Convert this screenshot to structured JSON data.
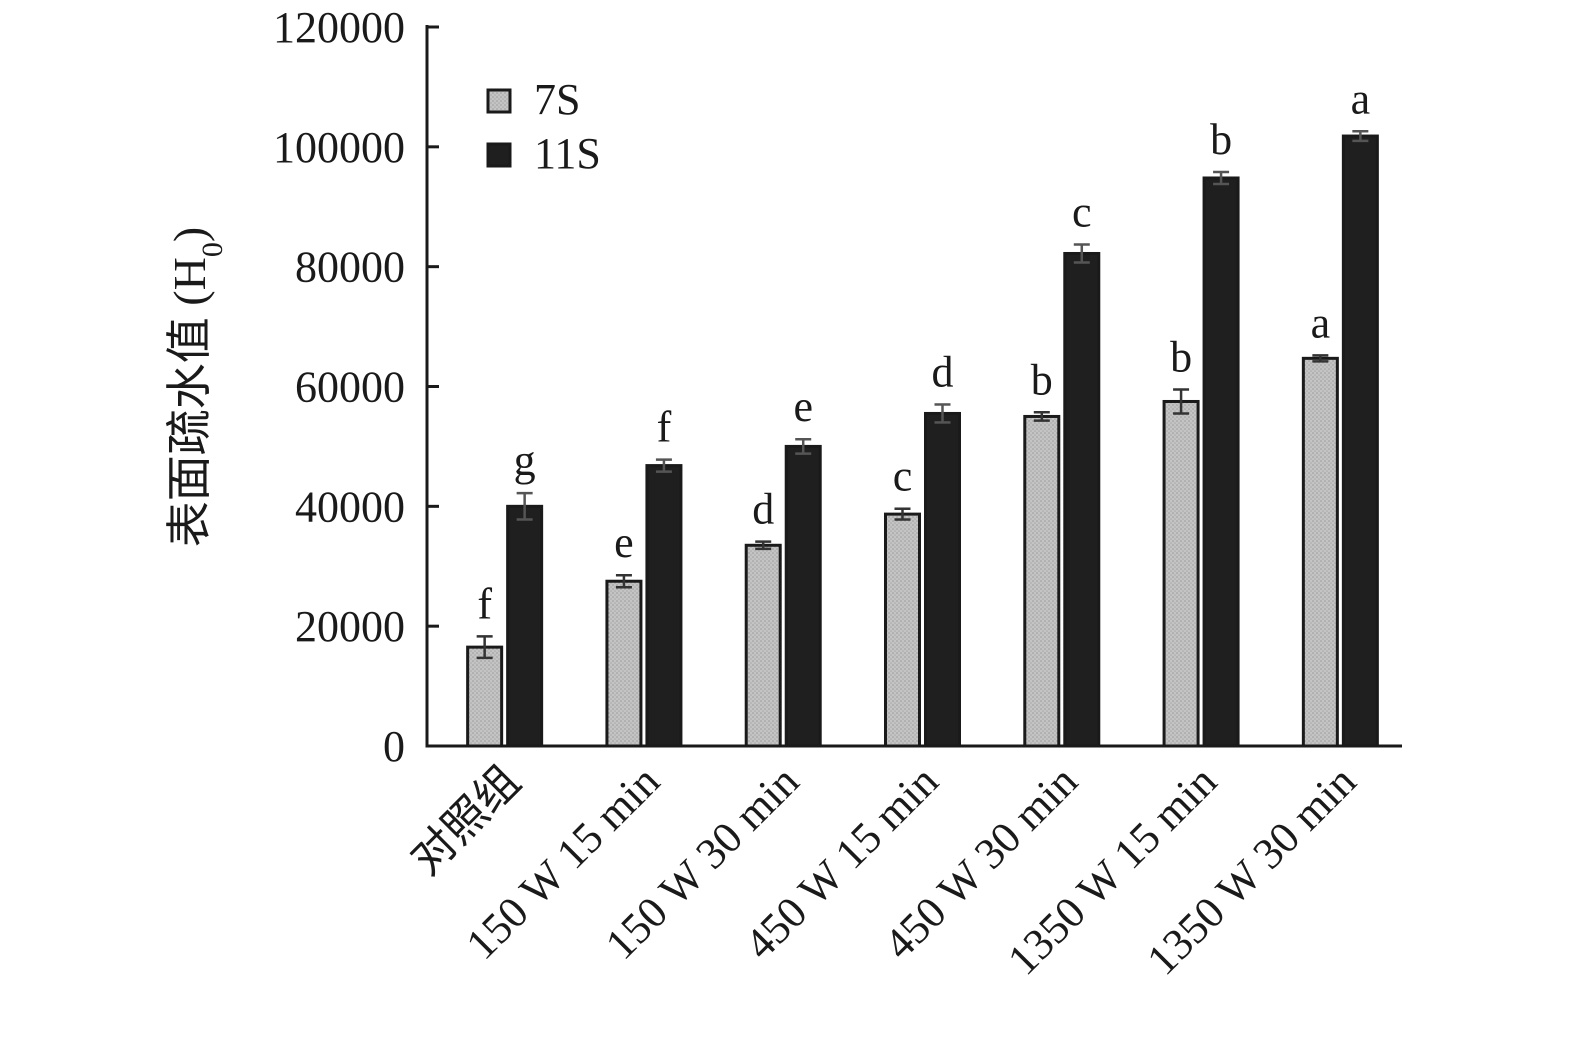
{
  "chart_data": {
    "type": "bar",
    "ylabel": "表面疏水值 (H",
    "ylabel_sub": "0",
    "ylabel_close": ")",
    "xlabel": "",
    "ylim": [
      0,
      120000
    ],
    "yticks": [
      0,
      20000,
      40000,
      60000,
      80000,
      100000,
      120000
    ],
    "categories": [
      "对照组",
      "150 W 15 min",
      "150 W 30 min",
      "450 W 15 min",
      "450 W 30 min",
      "1350 W 15 min",
      "1350 W 30 min"
    ],
    "legend_position": "top-left",
    "grid": false,
    "series": [
      {
        "name": "7S",
        "color": "#b8b8b8",
        "values": [
          16500,
          27500,
          33500,
          38700,
          55000,
          57500,
          64700
        ],
        "errors": [
          1800,
          1000,
          600,
          900,
          700,
          2000,
          500
        ],
        "labels": [
          "f",
          "e",
          "d",
          "c",
          "b",
          "b",
          "a"
        ]
      },
      {
        "name": "11S",
        "color": "#1f1f1f",
        "values": [
          40000,
          46800,
          50000,
          55500,
          82200,
          94800,
          101800
        ],
        "errors": [
          2200,
          1000,
          1200,
          1500,
          1500,
          1000,
          800
        ],
        "labels": [
          "g",
          "f",
          "e",
          "d",
          "c",
          "b",
          "a"
        ]
      }
    ]
  }
}
